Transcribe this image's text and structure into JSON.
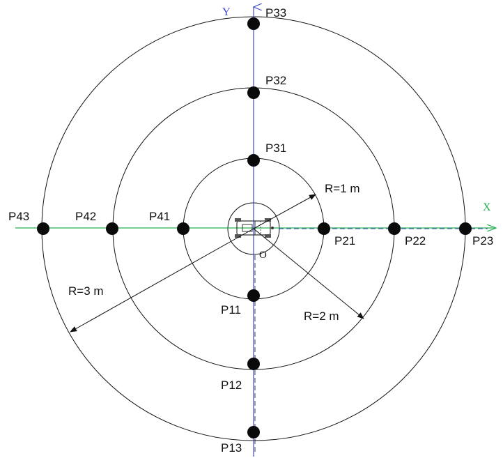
{
  "axes": {
    "x_label": "X",
    "y_label": "Y",
    "origin_label": "O",
    "x_color": "#22b14c",
    "y_color": "#3f48cc"
  },
  "radius_labels": [
    "R=1 m",
    "R=2 m",
    "R=3 m"
  ],
  "points": [
    "P11",
    "P12",
    "P13",
    "P21",
    "P22",
    "P23",
    "P31",
    "P32",
    "P33",
    "P41",
    "P42",
    "P43"
  ],
  "vehicle_icon": "vehicle-top-view-icon"
}
